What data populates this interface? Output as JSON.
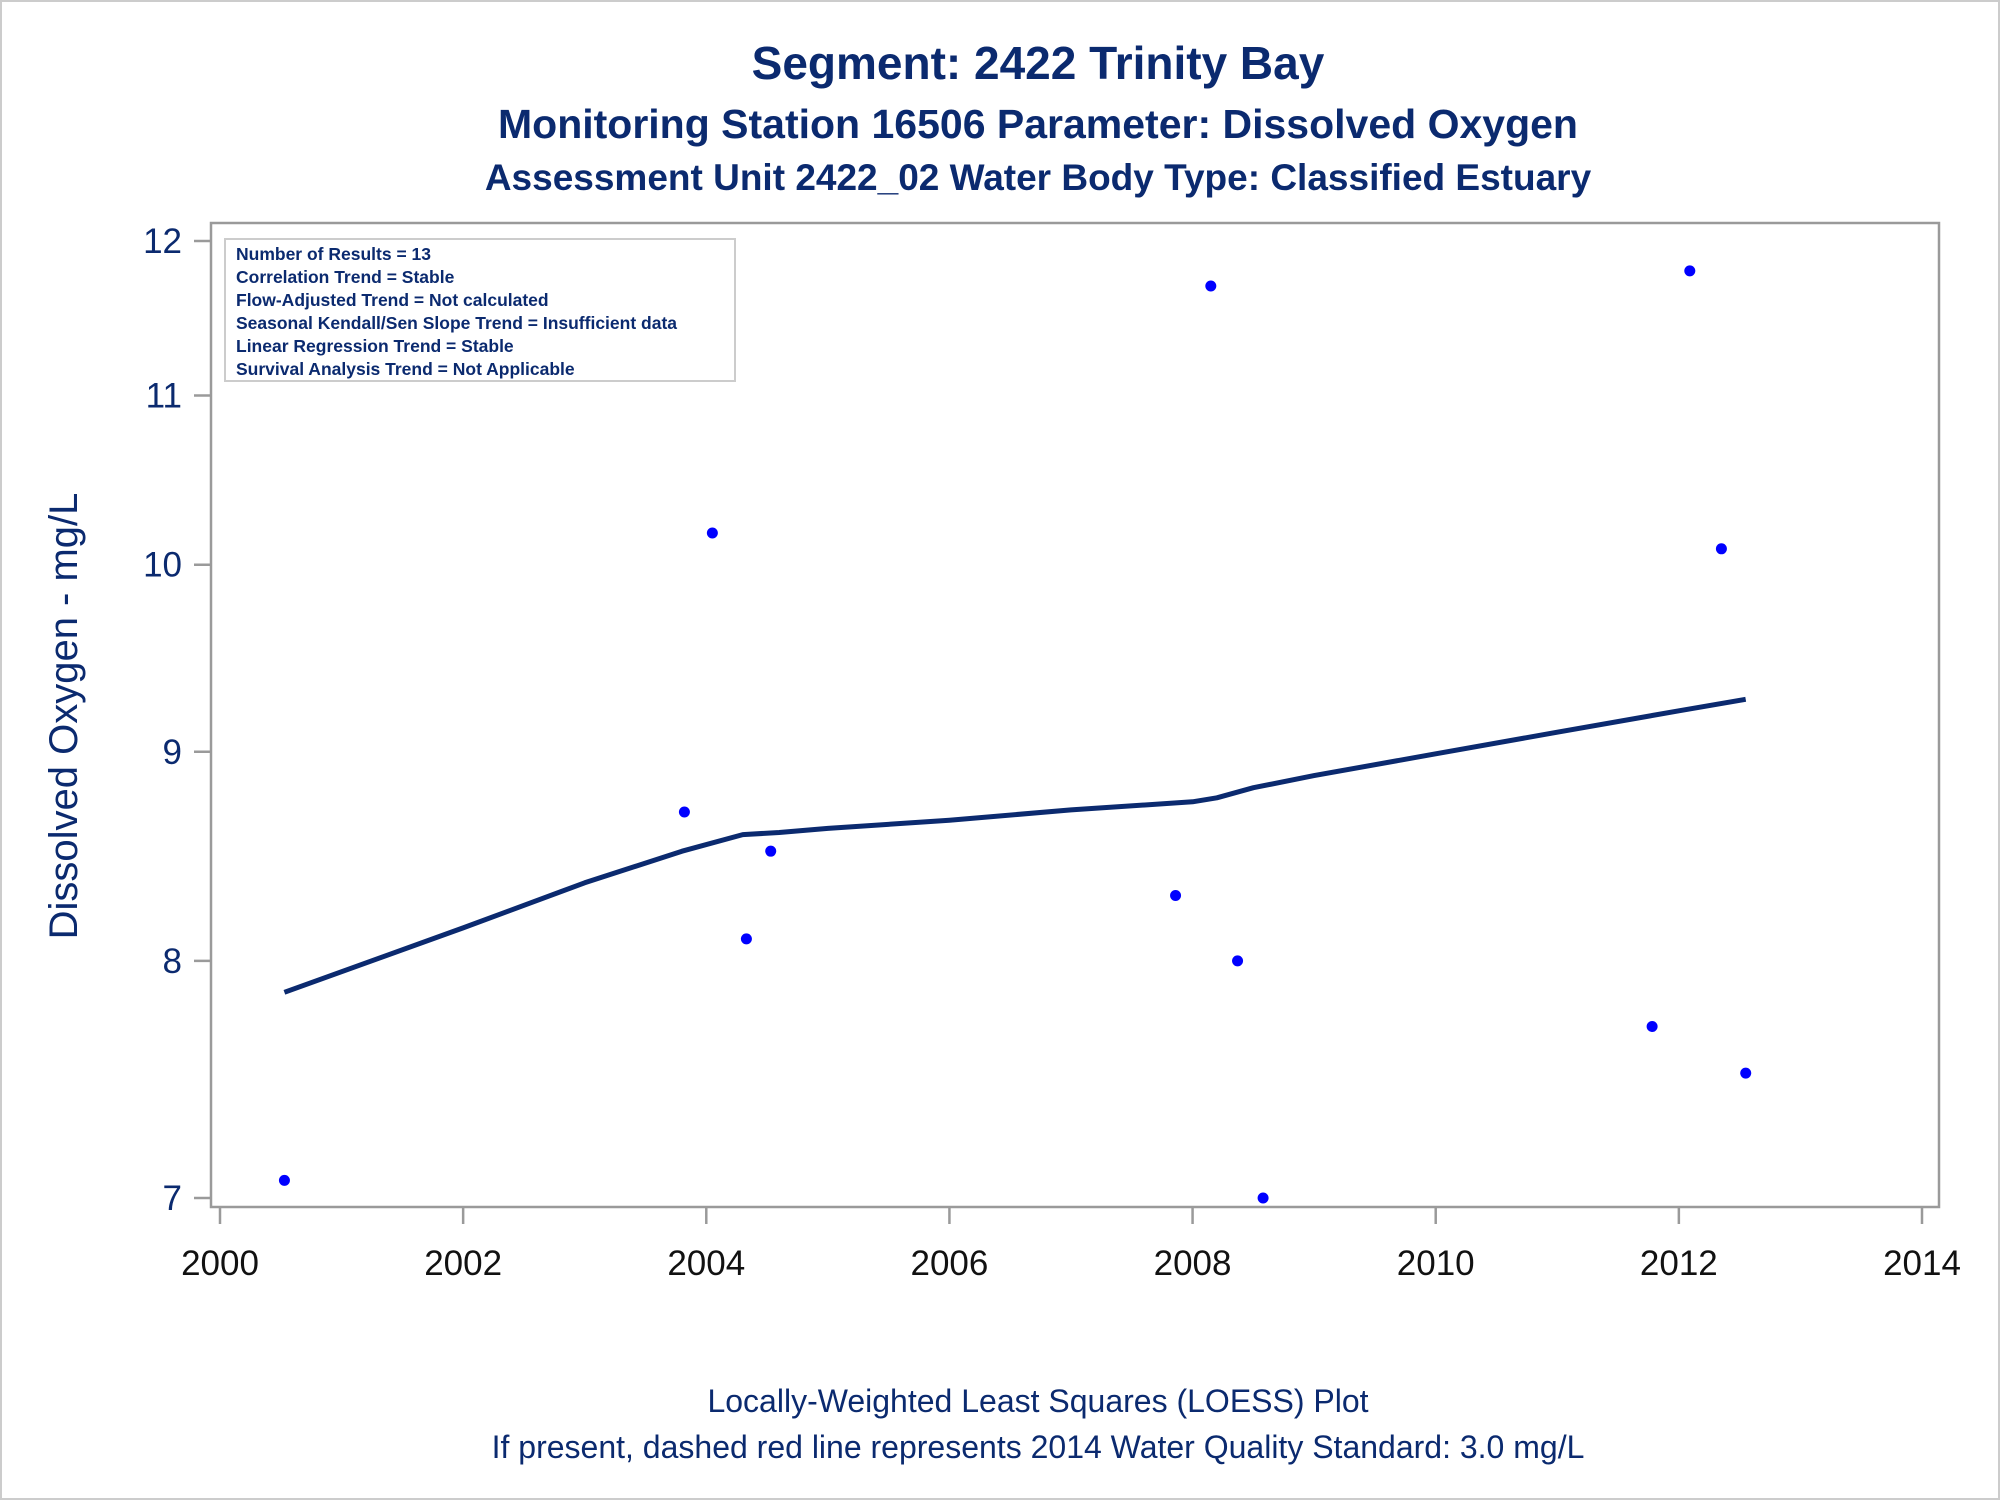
{
  "colors": {
    "text": "#0b2a6f",
    "tick_text": "#111111",
    "y_tick_text": "#0b2a6f",
    "frame": "#9a9a9a",
    "points": "#0000ff",
    "loess": "#0b2a6f",
    "border": "#cccccc"
  },
  "chart_data": {
    "type": "scatter",
    "title": "Segment: 2422  Trinity Bay",
    "subtitle": "Monitoring Station 16506 Parameter: Dissolved Oxygen",
    "subtitle2": "Assessment Unit 2422_02   Water Body Type: Classified Estuary",
    "xlabel": "",
    "ylabel": "Dissolved Oxygen - mg/L",
    "x_scale": "date (years)",
    "y_scale": "log",
    "xlim": [
      2000,
      2014
    ],
    "ylim": [
      7,
      12
    ],
    "x_ticks": [
      "2000",
      "2002",
      "2004",
      "2006",
      "2008",
      "2010",
      "2012",
      "2014"
    ],
    "y_ticks": [
      "7",
      "8",
      "9",
      "10",
      "11",
      "12"
    ],
    "grid": false,
    "legend_position": "top-left",
    "legend_lines": [
      "Number of Results = 13",
      "Correlation Trend = Stable",
      "Flow-Adjusted Trend = Not calculated",
      "Seasonal Kendall/Sen Slope Trend = Insufficient data",
      "Linear Regression Trend = Stable",
      "Survival Analysis Trend = Not Applicable"
    ],
    "points": [
      {
        "x": 2000.53,
        "y": 7.07
      },
      {
        "x": 2003.82,
        "y": 8.7
      },
      {
        "x": 2004.05,
        "y": 10.18
      },
      {
        "x": 2004.33,
        "y": 8.1
      },
      {
        "x": 2004.53,
        "y": 8.51
      },
      {
        "x": 2007.86,
        "y": 8.3
      },
      {
        "x": 2008.15,
        "y": 11.7
      },
      {
        "x": 2008.37,
        "y": 8.0
      },
      {
        "x": 2008.58,
        "y": 7.0
      },
      {
        "x": 2011.78,
        "y": 7.71
      },
      {
        "x": 2012.09,
        "y": 11.8
      },
      {
        "x": 2012.35,
        "y": 10.09
      },
      {
        "x": 2012.55,
        "y": 7.51
      }
    ],
    "series": [
      {
        "type": "loess",
        "x": [
          2000.53,
          2002.0,
          2003.0,
          2003.8,
          2004.3,
          2004.6,
          2005.0,
          2006.0,
          2007.0,
          2008.0,
          2008.2,
          2008.5,
          2009.0,
          2010.0,
          2011.0,
          2012.0,
          2012.55
        ],
        "y": [
          7.86,
          8.15,
          8.36,
          8.51,
          8.59,
          8.6,
          8.62,
          8.66,
          8.71,
          8.75,
          8.77,
          8.82,
          8.88,
          8.99,
          9.1,
          9.21,
          9.27
        ]
      }
    ],
    "footnotes": [
      "Locally-Weighted Least Squares (LOESS) Plot",
      "If present, dashed red line represents 2014 Water Quality Standard: 3.0 mg/L"
    ]
  }
}
